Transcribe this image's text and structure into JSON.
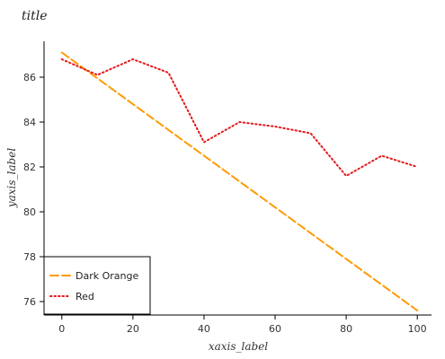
{
  "chart_data": {
    "type": "line",
    "title": "title",
    "xlabel": "xaxis_label",
    "ylabel": "yaxis_label",
    "xlim": [
      -5,
      104
    ],
    "ylim": [
      75.4,
      87.6
    ],
    "x_ticks": [
      0,
      20,
      40,
      60,
      80,
      100
    ],
    "y_ticks": [
      76,
      78,
      80,
      82,
      84,
      86
    ],
    "grid": false,
    "legend_position": "bottom-left",
    "series": [
      {
        "name": "Dark Orange",
        "color": "#ff9a00",
        "style": "dashed",
        "x": [
          0,
          100
        ],
        "y": [
          87.1,
          75.6
        ]
      },
      {
        "name": "Red",
        "color": "#e31a1c",
        "style": "dotted",
        "x": [
          0,
          10,
          20,
          30,
          40,
          50,
          60,
          70,
          80,
          90,
          100
        ],
        "y": [
          86.8,
          86.1,
          86.8,
          86.2,
          83.1,
          84.0,
          83.8,
          83.5,
          81.6,
          82.5,
          82.0
        ]
      }
    ]
  }
}
